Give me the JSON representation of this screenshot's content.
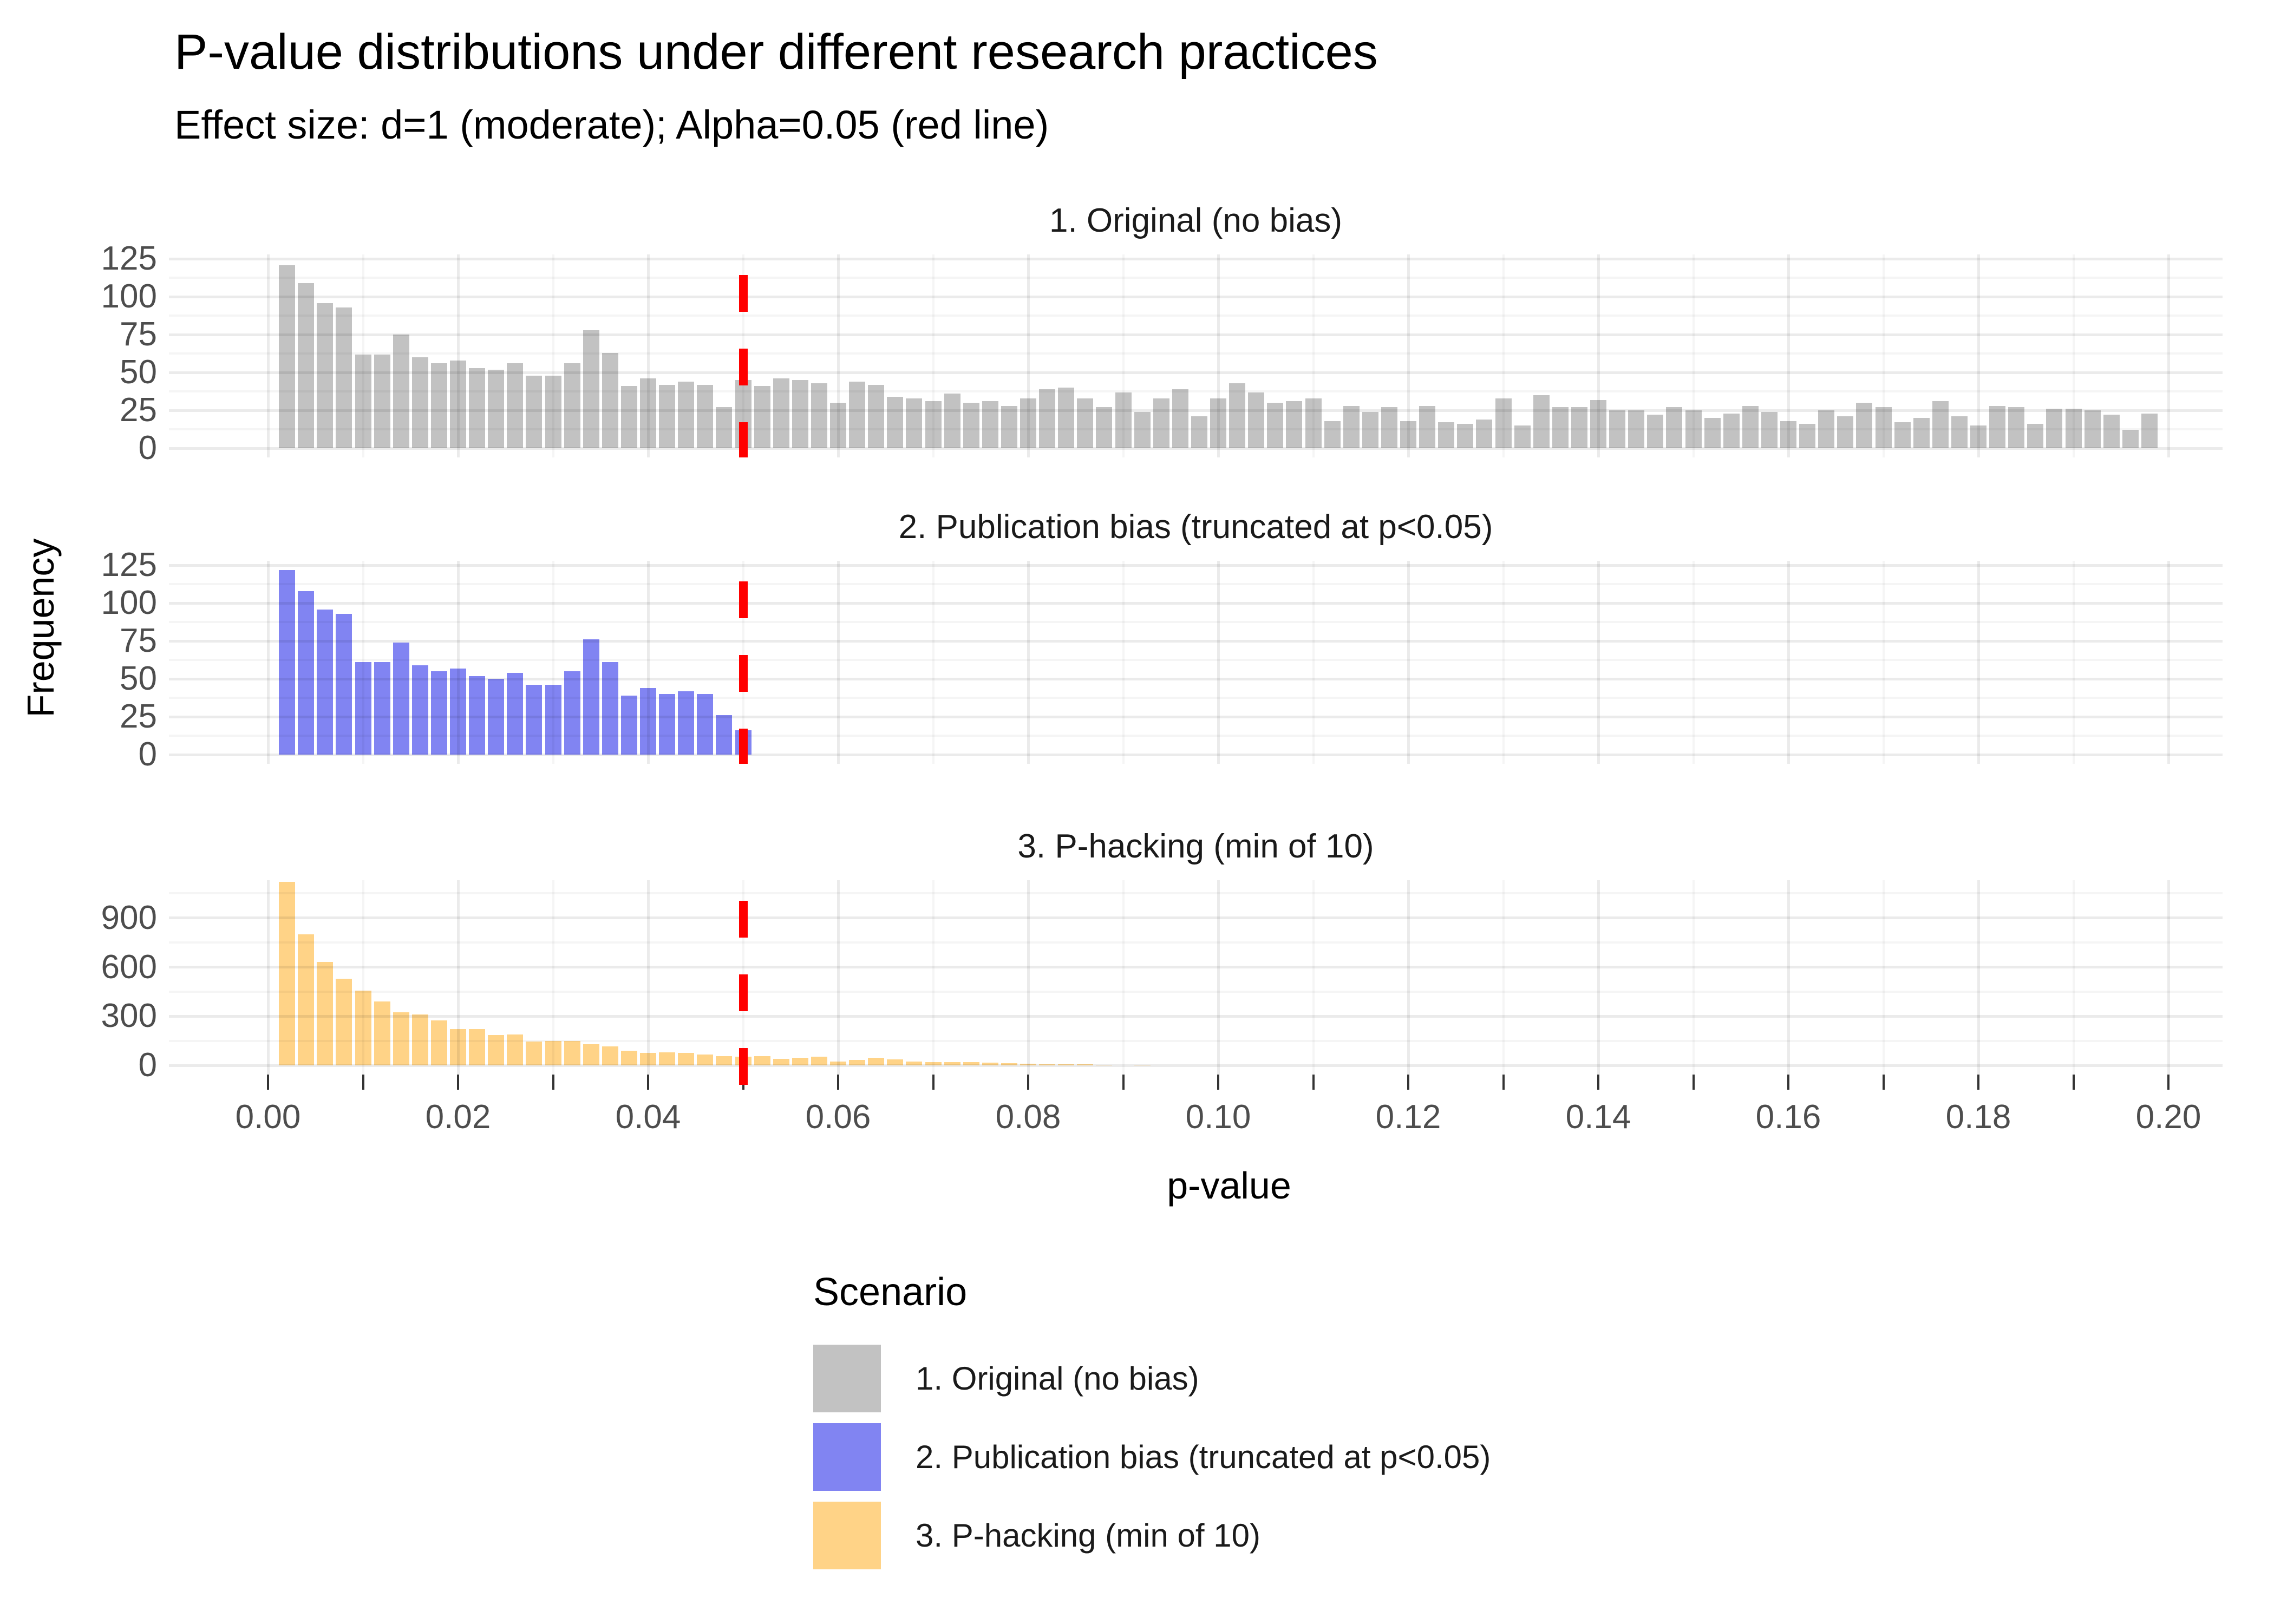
{
  "figure": {
    "title": "P-value distributions under different research practices",
    "subtitle": "Effect size: d=1 (moderate); Alpha=0.05 (red line)"
  },
  "axes": {
    "x_label": "p-value",
    "y_label": "Frequency",
    "x_tick_labels": [
      "0.00",
      "0.02",
      "0.04",
      "0.06",
      "0.08",
      "0.10",
      "0.12",
      "0.14",
      "0.16",
      "0.18",
      "0.20"
    ]
  },
  "legend": {
    "title": "Scenario",
    "items": [
      {
        "label": "1. Original (no bias)",
        "color": "#C2C2C2"
      },
      {
        "label": "2. Publication bias (truncated at p<0.05)",
        "color": "#8184F2"
      },
      {
        "label": "3. P-hacking (min of 10)",
        "color": "#FFD387"
      }
    ]
  },
  "chart_data": {
    "type": "bar",
    "kind": "faceted-histogram",
    "bin_width": 0.002,
    "first_bin_center": 0.002,
    "x_range": [
      0,
      0.2
    ],
    "x_major_ticks": [
      0,
      0.02,
      0.04,
      0.06,
      0.08,
      0.1,
      0.12,
      0.14,
      0.16,
      0.18,
      0.2
    ],
    "x_minor_ticks": [
      0.01,
      0.03,
      0.05,
      0.07,
      0.09,
      0.11,
      0.13,
      0.15,
      0.17,
      0.19
    ],
    "axis_tick_step": 0.01,
    "grid": "on",
    "alpha_line": {
      "x": 0.05,
      "color": "#FF0000",
      "style": "dashed"
    },
    "facets": [
      {
        "title": "1. Original (no bias)",
        "color": "#C2C2C2",
        "y_major_ticks": [
          0,
          25,
          50,
          75,
          100,
          125
        ],
        "y_minor_ticks": [
          12.5,
          37.5,
          62.5,
          87.5,
          112.5
        ],
        "ylim": [
          0,
          128
        ],
        "values": [
          121,
          109,
          96,
          93,
          62,
          62,
          75,
          60,
          56,
          58,
          53,
          52,
          56,
          48,
          48,
          56,
          78,
          63,
          41,
          46,
          42,
          44,
          42,
          27,
          45,
          41,
          46,
          45,
          43,
          30,
          44,
          42,
          34,
          33,
          31,
          36,
          30,
          31,
          28,
          33,
          39,
          40,
          33,
          27,
          37,
          24,
          33,
          39,
          21,
          33,
          43,
          37,
          30,
          31,
          33,
          18,
          28,
          24,
          27,
          18,
          28,
          17,
          16,
          19,
          33,
          15,
          35,
          27,
          27,
          32,
          25,
          25,
          22,
          27,
          25,
          20,
          23,
          28,
          24,
          18,
          16,
          25,
          21,
          30,
          27,
          17,
          20,
          31,
          21,
          15,
          28,
          27,
          16,
          26,
          26,
          25,
          22,
          12,
          23
        ]
      },
      {
        "title": "2. Publication bias (truncated at p<0.05)",
        "color": "#8184F2",
        "y_major_ticks": [
          0,
          25,
          50,
          75,
          100,
          125
        ],
        "y_minor_ticks": [
          12.5,
          37.5,
          62.5,
          87.5,
          112.5
        ],
        "ylim": [
          0,
          128
        ],
        "values": [
          122,
          108,
          96,
          93,
          61,
          61,
          74,
          59,
          55,
          57,
          52,
          50,
          54,
          46,
          46,
          55,
          76,
          61,
          39,
          44,
          40,
          42,
          40,
          26,
          16
        ]
      },
      {
        "title": "3. P-hacking (min of 10)",
        "color": "#FFD387",
        "y_major_ticks": [
          0,
          300,
          600,
          900
        ],
        "y_minor_ticks": [
          150,
          450,
          750,
          1050
        ],
        "ylim": [
          0,
          1131
        ],
        "values": [
          1120,
          800,
          630,
          530,
          455,
          390,
          325,
          310,
          275,
          220,
          220,
          185,
          190,
          145,
          150,
          150,
          130,
          115,
          90,
          75,
          80,
          75,
          65,
          57,
          52,
          55,
          41,
          46,
          54,
          24,
          33,
          46,
          37,
          24,
          21,
          19,
          21,
          16,
          13,
          11,
          8,
          5,
          5,
          4,
          0,
          4
        ]
      }
    ]
  }
}
